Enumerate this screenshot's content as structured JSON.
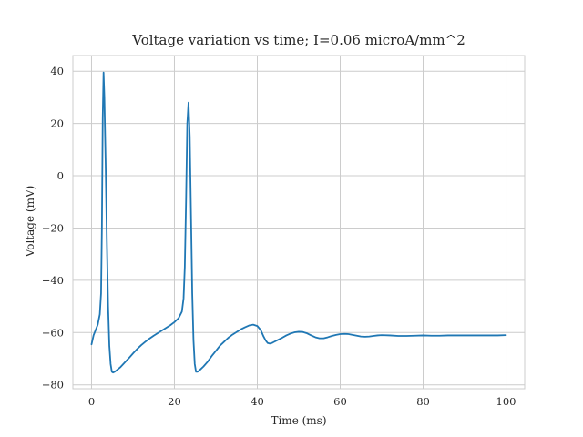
{
  "chart_data": {
    "type": "line",
    "title": "Voltage variation vs time; I=0.06 microA/mm^2",
    "xlabel": "Time (ms)",
    "ylabel": "Voltage (mV)",
    "xlim": [
      -4.5,
      104.5
    ],
    "ylim": [
      -81.5,
      46
    ],
    "xticks": [
      0,
      20,
      40,
      60,
      80,
      100
    ],
    "xtick_labels": [
      "0",
      "20",
      "40",
      "60",
      "80",
      "100"
    ],
    "yticks": [
      -80,
      -60,
      -40,
      -20,
      0,
      20,
      40
    ],
    "ytick_labels": [
      "−80",
      "−60",
      "−40",
      "−20",
      "0",
      "20",
      "40"
    ],
    "grid": true,
    "color": "#1f77b4",
    "series": [
      {
        "x": [
          0,
          0.5,
          1,
          1.5,
          2,
          2.3,
          2.5,
          2.7,
          2.9,
          3.1,
          3.4,
          3.7,
          4,
          4.3,
          4.6,
          4.9,
          5.2,
          5.6,
          6,
          7,
          8,
          9,
          10,
          11,
          12,
          13,
          14,
          15,
          16,
          17,
          18,
          19,
          20,
          21,
          21.8,
          22.2,
          22.5,
          22.8,
          23.1,
          23.4,
          23.7,
          24,
          24.3,
          24.6,
          24.9,
          25.2,
          25.6,
          26,
          27,
          28,
          29,
          30,
          31,
          32,
          33,
          34,
          35,
          36,
          37,
          38,
          39,
          40,
          40.8,
          41.5,
          42,
          42.5,
          43,
          43.5,
          44,
          45,
          46,
          47,
          48,
          49,
          50,
          51,
          52,
          53,
          54,
          55,
          56,
          57,
          58,
          59,
          60,
          61,
          62,
          63,
          64,
          65,
          66,
          67,
          68,
          69,
          70,
          72,
          74,
          76,
          78,
          80,
          82,
          84,
          86,
          88,
          90,
          92,
          94,
          96,
          98,
          100
        ],
        "y": [
          -64.5,
          -61,
          -59,
          -57,
          -53,
          -45,
          -20,
          22,
          39.5,
          30,
          5,
          -25,
          -50,
          -65,
          -72,
          -75,
          -75.3,
          -75,
          -74.5,
          -73.2,
          -71.5,
          -69.8,
          -68,
          -66.3,
          -64.8,
          -63.5,
          -62.3,
          -61.2,
          -60.2,
          -59.2,
          -58.2,
          -57.2,
          -56,
          -54.5,
          -52,
          -47,
          -35,
          -10,
          20,
          28,
          15,
          -15,
          -45,
          -63,
          -72,
          -75,
          -75,
          -74.5,
          -73,
          -71.2,
          -69,
          -67,
          -65,
          -63.5,
          -62,
          -60.8,
          -59.8,
          -58.8,
          -58,
          -57.3,
          -57,
          -57.5,
          -59,
          -61.5,
          -63,
          -64,
          -64.2,
          -64,
          -63.6,
          -62.8,
          -62,
          -61.1,
          -60.4,
          -59.9,
          -59.7,
          -59.8,
          -60.3,
          -61.1,
          -61.8,
          -62.2,
          -62.2,
          -61.8,
          -61.3,
          -60.9,
          -60.6,
          -60.5,
          -60.6,
          -60.9,
          -61.2,
          -61.5,
          -61.6,
          -61.5,
          -61.3,
          -61.1,
          -61,
          -61.1,
          -61.3,
          -61.3,
          -61.2,
          -61.1,
          -61.2,
          -61.2,
          -61.1,
          -61.1,
          -61.1,
          -61.1,
          -61.1,
          -61.1,
          -61.1,
          -61
        ]
      }
    ]
  }
}
